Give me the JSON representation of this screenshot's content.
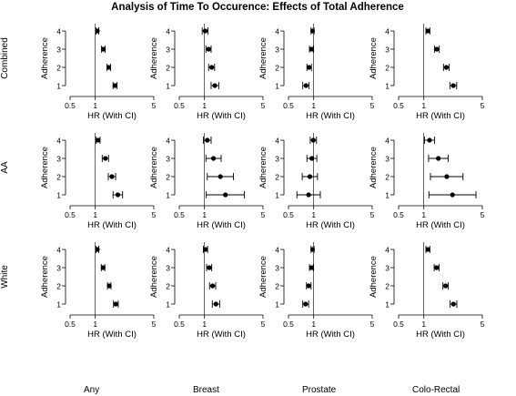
{
  "title": "Analysis of Time To Occurence: Effects of Total Adherence",
  "row_labels": [
    "Combined",
    "AA",
    "White"
  ],
  "column_labels": [
    "Any",
    "Breast",
    "Prostate",
    "Colo-Rectal"
  ],
  "chart_data": {
    "type": "forest",
    "title": "Analysis of Time To Occurence: Effects of Total Adherence",
    "xlabel": "HR (With CI)",
    "ylabel": "Adherence",
    "xscale": "log",
    "xlim": [
      0.5,
      5
    ],
    "xticks": [
      "0.5",
      "1",
      "5"
    ],
    "yticks": [
      "1",
      "2",
      "3",
      "4"
    ],
    "reference_line": 1,
    "panels": [
      {
        "row": "Combined",
        "column": "Any",
        "points": [
          {
            "adherence": 4,
            "hr": 1.06,
            "lo": 1.02,
            "hi": 1.1
          },
          {
            "adherence": 3,
            "hr": 1.25,
            "lo": 1.19,
            "hi": 1.31
          },
          {
            "adherence": 2,
            "hr": 1.45,
            "lo": 1.38,
            "hi": 1.52
          },
          {
            "adherence": 1,
            "hr": 1.72,
            "lo": 1.63,
            "hi": 1.82
          }
        ]
      },
      {
        "row": "Combined",
        "column": "Breast",
        "points": [
          {
            "adherence": 4,
            "hr": 1.02,
            "lo": 0.94,
            "hi": 1.1
          },
          {
            "adherence": 3,
            "hr": 1.12,
            "lo": 1.04,
            "hi": 1.2
          },
          {
            "adherence": 2,
            "hr": 1.22,
            "lo": 1.12,
            "hi": 1.32
          },
          {
            "adherence": 1,
            "hr": 1.33,
            "lo": 1.2,
            "hi": 1.48
          }
        ]
      },
      {
        "row": "Combined",
        "column": "Prostate",
        "points": [
          {
            "adherence": 4,
            "hr": 0.97,
            "lo": 0.93,
            "hi": 1.01
          },
          {
            "adherence": 3,
            "hr": 0.94,
            "lo": 0.89,
            "hi": 0.99
          },
          {
            "adherence": 2,
            "hr": 0.88,
            "lo": 0.83,
            "hi": 0.94
          },
          {
            "adherence": 1,
            "hr": 0.81,
            "lo": 0.74,
            "hi": 0.88
          }
        ]
      },
      {
        "row": "Combined",
        "column": "Colo-Rectal",
        "points": [
          {
            "adherence": 4,
            "hr": 1.12,
            "lo": 1.06,
            "hi": 1.18
          },
          {
            "adherence": 3,
            "hr": 1.43,
            "lo": 1.34,
            "hi": 1.53
          },
          {
            "adherence": 2,
            "hr": 1.86,
            "lo": 1.72,
            "hi": 2.01
          },
          {
            "adherence": 1,
            "hr": 2.25,
            "lo": 2.05,
            "hi": 2.47
          }
        ]
      },
      {
        "row": "AA",
        "column": "Any",
        "points": [
          {
            "adherence": 4,
            "hr": 1.08,
            "lo": 1.02,
            "hi": 1.14
          },
          {
            "adherence": 3,
            "hr": 1.32,
            "lo": 1.21,
            "hi": 1.44
          },
          {
            "adherence": 2,
            "hr": 1.58,
            "lo": 1.43,
            "hi": 1.75
          },
          {
            "adherence": 1,
            "hr": 1.86,
            "lo": 1.63,
            "hi": 2.12
          }
        ]
      },
      {
        "row": "AA",
        "column": "Breast",
        "points": [
          {
            "adherence": 4,
            "hr": 1.08,
            "lo": 0.97,
            "hi": 1.2
          },
          {
            "adherence": 3,
            "hr": 1.28,
            "lo": 1.04,
            "hi": 1.58
          },
          {
            "adherence": 2,
            "hr": 1.55,
            "lo": 1.08,
            "hi": 2.22
          },
          {
            "adherence": 1,
            "hr": 1.78,
            "lo": 1.05,
            "hi": 3.0
          }
        ]
      },
      {
        "row": "AA",
        "column": "Prostate",
        "points": [
          {
            "adherence": 4,
            "hr": 0.99,
            "lo": 0.91,
            "hi": 1.08
          },
          {
            "adherence": 3,
            "hr": 0.95,
            "lo": 0.83,
            "hi": 1.09
          },
          {
            "adherence": 2,
            "hr": 0.9,
            "lo": 0.73,
            "hi": 1.11
          },
          {
            "adherence": 1,
            "hr": 0.87,
            "lo": 0.63,
            "hi": 1.2
          }
        ]
      },
      {
        "row": "AA",
        "column": "Colo-Rectal",
        "points": [
          {
            "adherence": 4,
            "hr": 1.17,
            "lo": 1.02,
            "hi": 1.34
          },
          {
            "adherence": 3,
            "hr": 1.49,
            "lo": 1.14,
            "hi": 1.96
          },
          {
            "adherence": 2,
            "hr": 1.88,
            "lo": 1.2,
            "hi": 2.94
          },
          {
            "adherence": 1,
            "hr": 2.2,
            "lo": 1.15,
            "hi": 4.2
          }
        ]
      },
      {
        "row": "White",
        "column": "Any",
        "points": [
          {
            "adherence": 4,
            "hr": 1.06,
            "lo": 1.02,
            "hi": 1.1
          },
          {
            "adherence": 3,
            "hr": 1.24,
            "lo": 1.18,
            "hi": 1.3
          },
          {
            "adherence": 2,
            "hr": 1.47,
            "lo": 1.4,
            "hi": 1.54
          },
          {
            "adherence": 1,
            "hr": 1.76,
            "lo": 1.65,
            "hi": 1.88
          }
        ]
      },
      {
        "row": "White",
        "column": "Breast",
        "points": [
          {
            "adherence": 4,
            "hr": 1.03,
            "lo": 0.97,
            "hi": 1.09
          },
          {
            "adherence": 3,
            "hr": 1.14,
            "lo": 1.06,
            "hi": 1.22
          },
          {
            "adherence": 2,
            "hr": 1.25,
            "lo": 1.15,
            "hi": 1.36
          },
          {
            "adherence": 1,
            "hr": 1.37,
            "lo": 1.24,
            "hi": 1.52
          }
        ]
      },
      {
        "row": "White",
        "column": "Prostate",
        "points": [
          {
            "adherence": 4,
            "hr": 0.97,
            "lo": 0.93,
            "hi": 1.01
          },
          {
            "adherence": 3,
            "hr": 0.94,
            "lo": 0.89,
            "hi": 0.99
          },
          {
            "adherence": 2,
            "hr": 0.87,
            "lo": 0.82,
            "hi": 0.93
          },
          {
            "adherence": 1,
            "hr": 0.8,
            "lo": 0.74,
            "hi": 0.87
          }
        ]
      },
      {
        "row": "White",
        "column": "Colo-Rectal",
        "points": [
          {
            "adherence": 4,
            "hr": 1.12,
            "lo": 1.06,
            "hi": 1.18
          },
          {
            "adherence": 3,
            "hr": 1.42,
            "lo": 1.33,
            "hi": 1.52
          },
          {
            "adherence": 2,
            "hr": 1.82,
            "lo": 1.69,
            "hi": 1.96
          },
          {
            "adherence": 1,
            "hr": 2.26,
            "lo": 2.06,
            "hi": 2.48
          }
        ]
      }
    ]
  }
}
